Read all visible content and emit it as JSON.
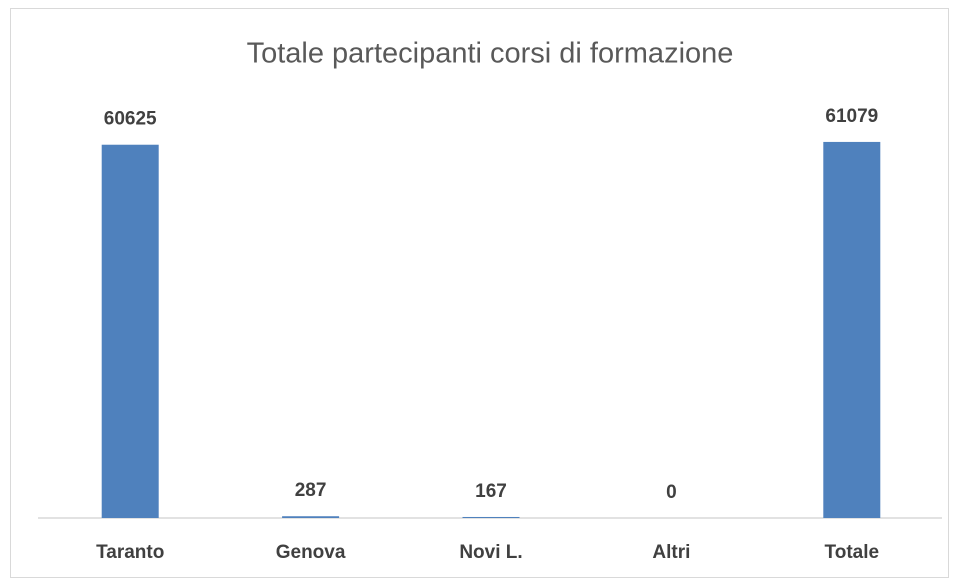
{
  "chart_data": {
    "type": "bar",
    "title": "Totale partecipanti corsi di formazione",
    "categories": [
      "Taranto",
      "Genova",
      "Novi L.",
      "Altri",
      "Totale"
    ],
    "values": [
      60625,
      287,
      167,
      0,
      61079
    ],
    "color": "#4f81bd",
    "ylim": [
      0,
      70000
    ]
  }
}
